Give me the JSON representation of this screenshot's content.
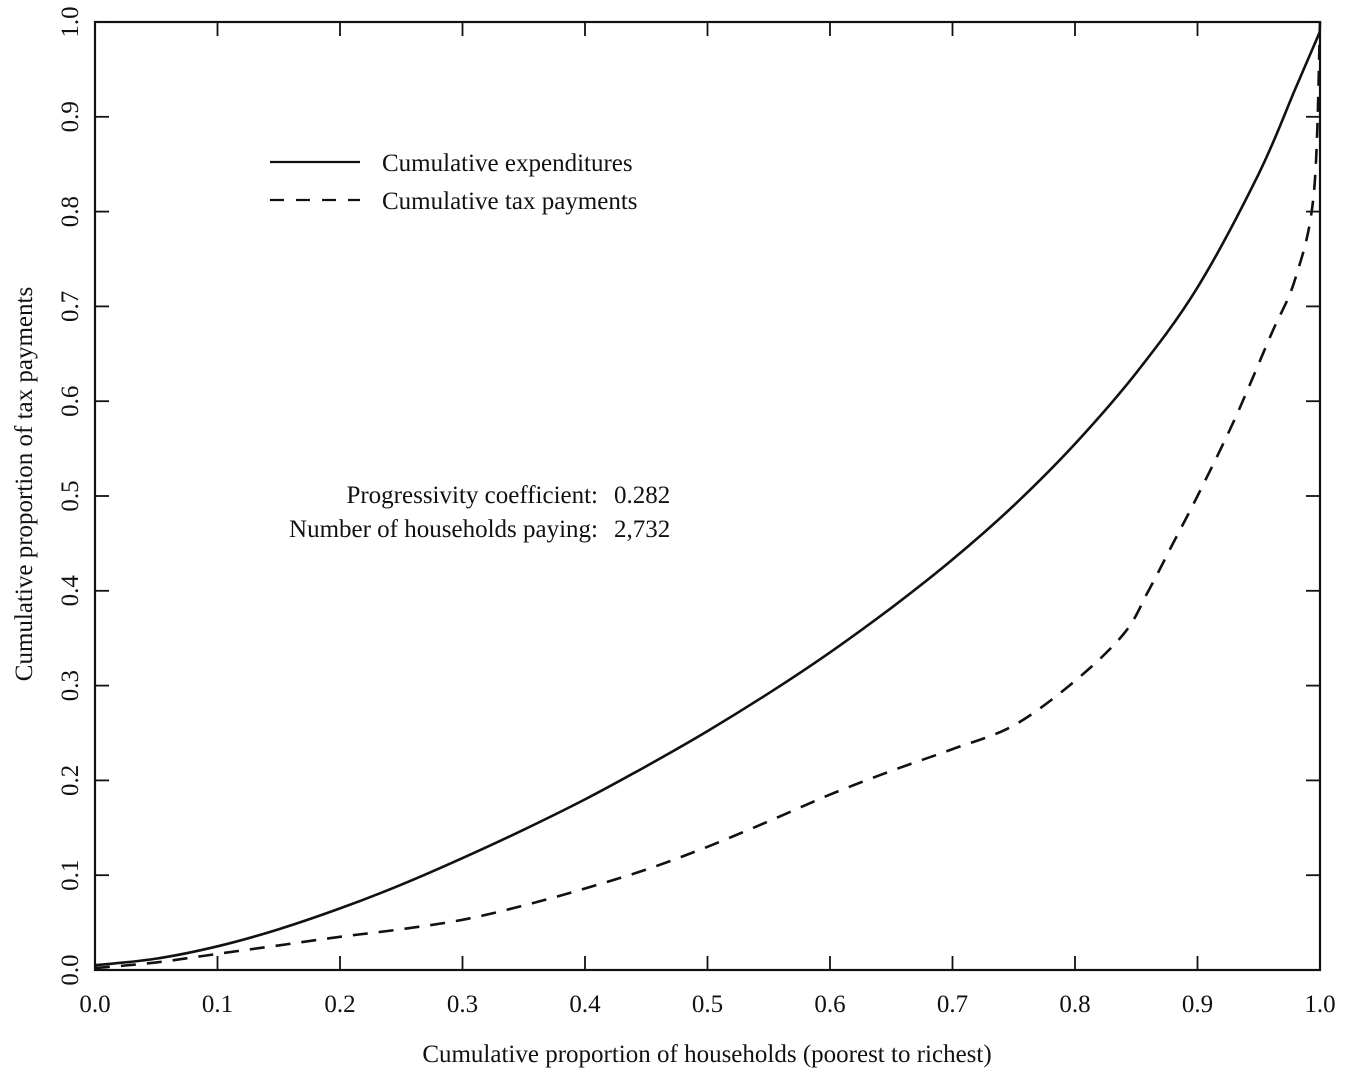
{
  "chart_data": {
    "type": "line",
    "title": "",
    "xlabel": "Cumulative proportion of households (poorest to richest)",
    "ylabel": "Cumulative proportion of tax payments",
    "xlim": [
      0.0,
      1.0
    ],
    "ylim": [
      0.0,
      1.0
    ],
    "x_ticks": [
      0.0,
      0.1,
      0.2,
      0.3,
      0.4,
      0.5,
      0.6,
      0.7,
      0.8,
      0.9,
      1.0
    ],
    "x_tick_labels": [
      "0.0",
      "0.1",
      "0.2",
      "0.3",
      "0.4",
      "0.5",
      "0.6",
      "0.7",
      "0.8",
      "0.9",
      "1.0"
    ],
    "y_ticks": [
      0.0,
      0.1,
      0.2,
      0.3,
      0.4,
      0.5,
      0.6,
      0.7,
      0.8,
      0.9,
      1.0
    ],
    "y_tick_labels": [
      "0.0",
      "0.1",
      "0.2",
      "0.3",
      "0.4",
      "0.5",
      "0.6",
      "0.7",
      "0.8",
      "0.9",
      "1.0"
    ],
    "grid": false,
    "legend_position": "top-left",
    "series": [
      {
        "name": "Cumulative expenditures",
        "style": "solid",
        "x": [
          0.0,
          0.05,
          0.1,
          0.15,
          0.2,
          0.25,
          0.3,
          0.35,
          0.4,
          0.45,
          0.5,
          0.55,
          0.6,
          0.65,
          0.7,
          0.75,
          0.8,
          0.85,
          0.9,
          0.95,
          0.98,
          1.0
        ],
        "y": [
          0.005,
          0.012,
          0.025,
          0.043,
          0.065,
          0.09,
          0.118,
          0.148,
          0.18,
          0.215,
          0.252,
          0.292,
          0.335,
          0.382,
          0.433,
          0.49,
          0.555,
          0.63,
          0.72,
          0.84,
          0.93,
          0.99
        ]
      },
      {
        "name": "Cumulative tax payments",
        "style": "dashed",
        "x": [
          0.0,
          0.05,
          0.1,
          0.15,
          0.2,
          0.25,
          0.3,
          0.35,
          0.4,
          0.45,
          0.5,
          0.55,
          0.6,
          0.65,
          0.7,
          0.75,
          0.8,
          0.84,
          0.86,
          0.88,
          0.9,
          0.93,
          0.96,
          0.98,
          0.995,
          1.0
        ],
        "y": [
          0.002,
          0.008,
          0.017,
          0.026,
          0.035,
          0.043,
          0.053,
          0.068,
          0.086,
          0.106,
          0.13,
          0.157,
          0.185,
          0.21,
          0.233,
          0.258,
          0.305,
          0.355,
          0.4,
          0.45,
          0.5,
          0.58,
          0.67,
          0.73,
          0.82,
          1.0
        ]
      }
    ],
    "annotations": [
      {
        "label": "Progressivity coefficient:",
        "value": "0.282"
      },
      {
        "label": "Number of households paying:",
        "value": "2,732"
      }
    ]
  }
}
